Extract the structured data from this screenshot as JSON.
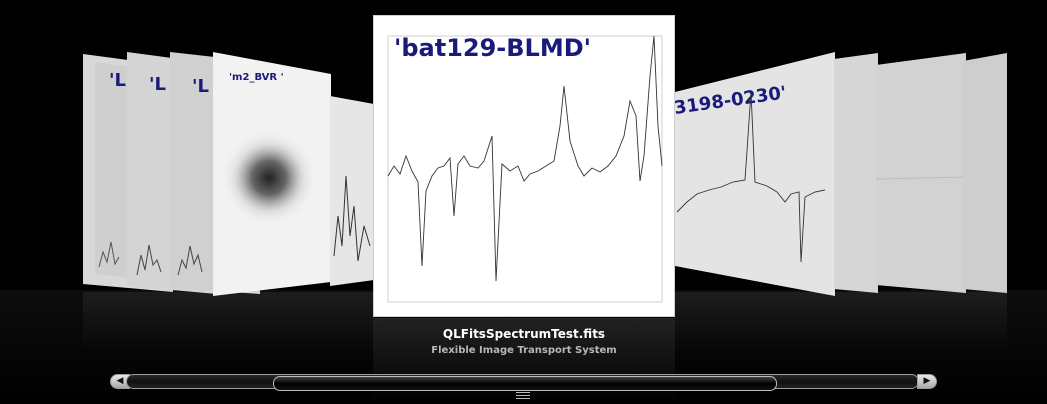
{
  "coverflow": {
    "left_labels": [
      "'L",
      "'L",
      "'L",
      "'m2_BVR '"
    ],
    "center_label": "'bat129-BLMD'",
    "right_label": "3198-0230'"
  },
  "caption": {
    "filename": "QLFitsSpectrumTest.fits",
    "kind": "Flexible Image Transport System"
  },
  "scrollbar": {
    "left_arrow_icon": "◀",
    "right_arrow_icon": "▶"
  }
}
